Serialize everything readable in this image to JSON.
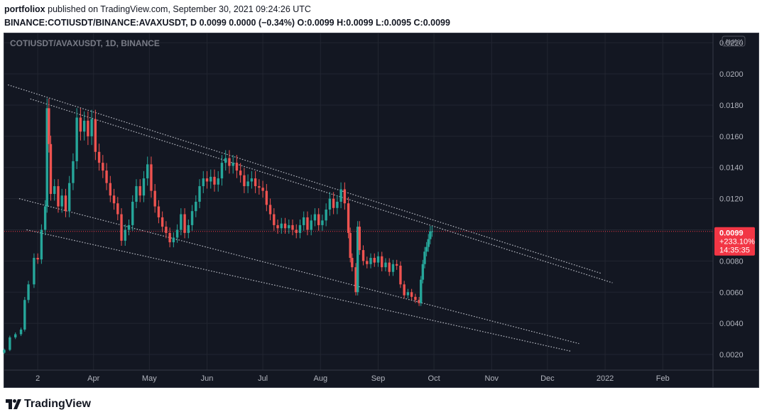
{
  "header": {
    "author": "portfoliox",
    "published_text": "published on TradingView.com, September 30, 2021 09:24:26 UTC",
    "symbol_full": "BINANCE:COTIUSDT/BINANCE:AVAXUSDT, D",
    "ohlc_text": "0.0099 0.0000 (−0.34%) O:0.0099 H:0.0099 L:0.0095 C:0.0099"
  },
  "chart_data": {
    "type": "candlestick",
    "title": "COTIUSDT/AVAXUSDT, 1D, BINANCE",
    "scale_badge": "AVAX",
    "y_ticks": [
      "0.0220",
      "0.0200",
      "0.0180",
      "0.0160",
      "0.0140",
      "0.0120",
      "0.0100",
      "0.0080",
      "0.0060",
      "0.0040",
      "0.0020"
    ],
    "y_tick_values": [
      0.022,
      0.02,
      0.018,
      0.016,
      0.014,
      0.012,
      0.01,
      0.008,
      0.006,
      0.004,
      0.002
    ],
    "ylim": [
      0.001,
      0.0226
    ],
    "x_labels": [
      "2",
      "Apr",
      "May",
      "Jun",
      "Jul",
      "Aug",
      "Sep",
      "Oct",
      "Nov",
      "Dec",
      "2022",
      "Feb"
    ],
    "x_label_dates": [
      "2021-03-02",
      "2021-04-01",
      "2021-05-01",
      "2021-06-01",
      "2021-07-01",
      "2021-08-01",
      "2021-09-01",
      "2021-10-01",
      "2021-11-01",
      "2021-12-01",
      "2022-01-01",
      "2022-02-01"
    ],
    "xlim": [
      "2021-02-12",
      "2022-02-28"
    ],
    "last_price": {
      "value": 0.0099,
      "label": "0.0099",
      "change": "+233.10%",
      "countdown": "14:35:35"
    },
    "closes": [
      {
        "date": "2021-02-12",
        "close": 0.0023
      },
      {
        "date": "2021-02-15",
        "close": 0.0031
      },
      {
        "date": "2021-02-18",
        "close": 0.0033
      },
      {
        "date": "2021-02-21",
        "close": 0.0036
      },
      {
        "date": "2021-02-23",
        "close": 0.0055
      },
      {
        "date": "2021-02-25",
        "close": 0.0065
      },
      {
        "date": "2021-02-28",
        "close": 0.0082
      },
      {
        "date": "2021-03-02",
        "close": 0.0081
      },
      {
        "date": "2021-03-04",
        "close": 0.01
      },
      {
        "date": "2021-03-06",
        "close": 0.0115
      },
      {
        "date": "2021-03-07",
        "close": 0.0178
      },
      {
        "date": "2021-03-08",
        "close": 0.0155
      },
      {
        "date": "2021-03-09",
        "close": 0.0123
      },
      {
        "date": "2021-03-11",
        "close": 0.0128
      },
      {
        "date": "2021-03-13",
        "close": 0.0115
      },
      {
        "date": "2021-03-15",
        "close": 0.0122
      },
      {
        "date": "2021-03-17",
        "close": 0.0112
      },
      {
        "date": "2021-03-19",
        "close": 0.013
      },
      {
        "date": "2021-03-21",
        "close": 0.0144
      },
      {
        "date": "2021-03-23",
        "close": 0.0172
      },
      {
        "date": "2021-03-25",
        "close": 0.0163
      },
      {
        "date": "2021-03-27",
        "close": 0.017
      },
      {
        "date": "2021-03-29",
        "close": 0.016
      },
      {
        "date": "2021-03-31",
        "close": 0.0171
      },
      {
        "date": "2021-04-02",
        "close": 0.015
      },
      {
        "date": "2021-04-04",
        "close": 0.0143
      },
      {
        "date": "2021-04-06",
        "close": 0.0138
      },
      {
        "date": "2021-04-08",
        "close": 0.013
      },
      {
        "date": "2021-04-10",
        "close": 0.0122
      },
      {
        "date": "2021-04-12",
        "close": 0.0117
      },
      {
        "date": "2021-04-14",
        "close": 0.011
      },
      {
        "date": "2021-04-16",
        "close": 0.0093
      },
      {
        "date": "2021-04-18",
        "close": 0.01
      },
      {
        "date": "2021-04-20",
        "close": 0.0103
      },
      {
        "date": "2021-04-22",
        "close": 0.0118
      },
      {
        "date": "2021-04-24",
        "close": 0.0128
      },
      {
        "date": "2021-04-26",
        "close": 0.0122
      },
      {
        "date": "2021-04-28",
        "close": 0.0133
      },
      {
        "date": "2021-04-30",
        "close": 0.0142
      },
      {
        "date": "2021-05-02",
        "close": 0.0125
      },
      {
        "date": "2021-05-04",
        "close": 0.0115
      },
      {
        "date": "2021-05-06",
        "close": 0.0108
      },
      {
        "date": "2021-05-08",
        "close": 0.0102
      },
      {
        "date": "2021-05-10",
        "close": 0.0098
      },
      {
        "date": "2021-05-12",
        "close": 0.0092
      },
      {
        "date": "2021-05-14",
        "close": 0.0095
      },
      {
        "date": "2021-05-16",
        "close": 0.01
      },
      {
        "date": "2021-05-18",
        "close": 0.011
      },
      {
        "date": "2021-05-20",
        "close": 0.0098
      },
      {
        "date": "2021-05-22",
        "close": 0.0103
      },
      {
        "date": "2021-05-24",
        "close": 0.0112
      },
      {
        "date": "2021-05-26",
        "close": 0.0118
      },
      {
        "date": "2021-05-28",
        "close": 0.0128
      },
      {
        "date": "2021-05-30",
        "close": 0.0133
      },
      {
        "date": "2021-06-01",
        "close": 0.0131
      },
      {
        "date": "2021-06-03",
        "close": 0.0134
      },
      {
        "date": "2021-06-05",
        "close": 0.0129
      },
      {
        "date": "2021-06-07",
        "close": 0.0133
      },
      {
        "date": "2021-06-09",
        "close": 0.0143
      },
      {
        "date": "2021-06-11",
        "close": 0.0146
      },
      {
        "date": "2021-06-13",
        "close": 0.0141
      },
      {
        "date": "2021-06-15",
        "close": 0.0143
      },
      {
        "date": "2021-06-17",
        "close": 0.0138
      },
      {
        "date": "2021-06-19",
        "close": 0.0135
      },
      {
        "date": "2021-06-21",
        "close": 0.0128
      },
      {
        "date": "2021-06-23",
        "close": 0.0131
      },
      {
        "date": "2021-06-25",
        "close": 0.0133
      },
      {
        "date": "2021-06-27",
        "close": 0.0128
      },
      {
        "date": "2021-06-29",
        "close": 0.0127
      },
      {
        "date": "2021-07-01",
        "close": 0.0125
      },
      {
        "date": "2021-07-03",
        "close": 0.0116
      },
      {
        "date": "2021-07-05",
        "close": 0.011
      },
      {
        "date": "2021-07-07",
        "close": 0.0103
      },
      {
        "date": "2021-07-09",
        "close": 0.0101
      },
      {
        "date": "2021-07-11",
        "close": 0.0104
      },
      {
        "date": "2021-07-13",
        "close": 0.0101
      },
      {
        "date": "2021-07-15",
        "close": 0.0103
      },
      {
        "date": "2021-07-17",
        "close": 0.01
      },
      {
        "date": "2021-07-19",
        "close": 0.0098
      },
      {
        "date": "2021-07-21",
        "close": 0.0103
      },
      {
        "date": "2021-07-23",
        "close": 0.0108
      },
      {
        "date": "2021-07-25",
        "close": 0.01
      },
      {
        "date": "2021-07-27",
        "close": 0.0106
      },
      {
        "date": "2021-07-29",
        "close": 0.011
      },
      {
        "date": "2021-07-31",
        "close": 0.0103
      },
      {
        "date": "2021-08-02",
        "close": 0.0106
      },
      {
        "date": "2021-08-04",
        "close": 0.0113
      },
      {
        "date": "2021-08-06",
        "close": 0.012
      },
      {
        "date": "2021-08-08",
        "close": 0.0114
      },
      {
        "date": "2021-08-10",
        "close": 0.0118
      },
      {
        "date": "2021-08-12",
        "close": 0.0126
      },
      {
        "date": "2021-08-14",
        "close": 0.0117
      },
      {
        "date": "2021-08-16",
        "close": 0.0098
      },
      {
        "date": "2021-08-17",
        "close": 0.0082
      },
      {
        "date": "2021-08-18",
        "close": 0.0076
      },
      {
        "date": "2021-08-20",
        "close": 0.006
      },
      {
        "date": "2021-08-21",
        "close": 0.0102
      },
      {
        "date": "2021-08-22",
        "close": 0.0087
      },
      {
        "date": "2021-08-24",
        "close": 0.008
      },
      {
        "date": "2021-08-26",
        "close": 0.0078
      },
      {
        "date": "2021-08-28",
        "close": 0.0082
      },
      {
        "date": "2021-08-30",
        "close": 0.0079
      },
      {
        "date": "2021-09-01",
        "close": 0.0083
      },
      {
        "date": "2021-09-03",
        "close": 0.0076
      },
      {
        "date": "2021-09-05",
        "close": 0.0079
      },
      {
        "date": "2021-09-07",
        "close": 0.0073
      },
      {
        "date": "2021-09-09",
        "close": 0.0078
      },
      {
        "date": "2021-09-11",
        "close": 0.0077
      },
      {
        "date": "2021-09-13",
        "close": 0.0065
      },
      {
        "date": "2021-09-15",
        "close": 0.0058
      },
      {
        "date": "2021-09-17",
        "close": 0.006
      },
      {
        "date": "2021-09-19",
        "close": 0.0057
      },
      {
        "date": "2021-09-21",
        "close": 0.0055
      },
      {
        "date": "2021-09-23",
        "close": 0.0053
      },
      {
        "date": "2021-09-24",
        "close": 0.0068
      },
      {
        "date": "2021-09-25",
        "close": 0.0078
      },
      {
        "date": "2021-09-26",
        "close": 0.0086
      },
      {
        "date": "2021-09-27",
        "close": 0.0089
      },
      {
        "date": "2021-09-28",
        "close": 0.0094
      },
      {
        "date": "2021-09-29",
        "close": 0.0099
      },
      {
        "date": "2021-09-30",
        "close": 0.0099
      }
    ],
    "trend_lines": [
      {
        "name": "channel-outer-upper",
        "from": {
          "date": "2021-02-14",
          "value": 0.0193
        },
        "to": {
          "date": "2021-12-30",
          "value": 0.0072
        }
      },
      {
        "name": "channel-inner-upper",
        "from": {
          "date": "2021-02-26",
          "value": 0.0184
        },
        "to": {
          "date": "2022-01-05",
          "value": 0.0066
        }
      },
      {
        "name": "channel-inner-lower",
        "from": {
          "date": "2021-02-20",
          "value": 0.012
        },
        "to": {
          "date": "2021-12-18",
          "value": 0.0027
        }
      },
      {
        "name": "channel-outer-lower",
        "from": {
          "date": "2021-02-24",
          "value": 0.01
        },
        "to": {
          "date": "2021-12-14",
          "value": 0.0022
        }
      }
    ]
  },
  "colors": {
    "background": "#131722",
    "grid": "#222631",
    "up": "#26a69a",
    "down": "#ef5350",
    "trend_line": "#d1d4dc",
    "price_line": "#f23645",
    "axis_text": "#b2b5be",
    "title_text": "#787b86"
  },
  "footer": {
    "brand": "TradingView"
  }
}
